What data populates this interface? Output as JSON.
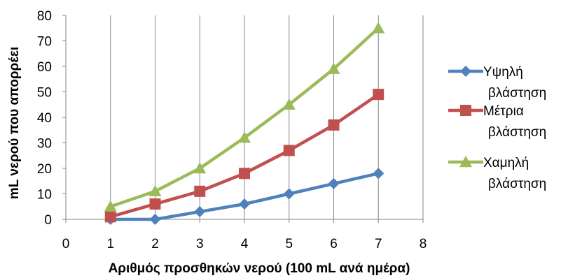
{
  "chart_data": {
    "type": "line",
    "xlabel": "Αριθμός προσθηκών νερού (100 mL ανά ημέρα)",
    "ylabel": "mL νερού που απορρέει",
    "xlim": [
      0,
      8
    ],
    "ylim": [
      0,
      80
    ],
    "xticks": [
      0,
      1,
      2,
      3,
      4,
      5,
      6,
      7,
      8
    ],
    "yticks": [
      0,
      10,
      20,
      30,
      40,
      50,
      60,
      70,
      80
    ],
    "grid": {
      "x": true,
      "y": false
    },
    "legend_position": "right",
    "x": [
      1,
      2,
      3,
      4,
      5,
      6,
      7
    ],
    "series": [
      {
        "name_line1": "Υψηλή",
        "name_line2": "βλάστηση",
        "marker": "diamond",
        "color": "#4F81BD",
        "values": [
          0,
          0,
          3,
          6,
          10,
          14,
          18
        ]
      },
      {
        "name_line1": "Μέτρια",
        "name_line2": "βλάστηση",
        "marker": "square",
        "color": "#C0504D",
        "values": [
          1,
          6,
          11,
          18,
          27,
          37,
          49
        ]
      },
      {
        "name_line1": "Χαμηλή",
        "name_line2": "βλάστηση",
        "marker": "triangle",
        "color": "#9BBB59",
        "values": [
          5,
          11,
          20,
          32,
          45,
          59,
          75
        ]
      }
    ]
  }
}
